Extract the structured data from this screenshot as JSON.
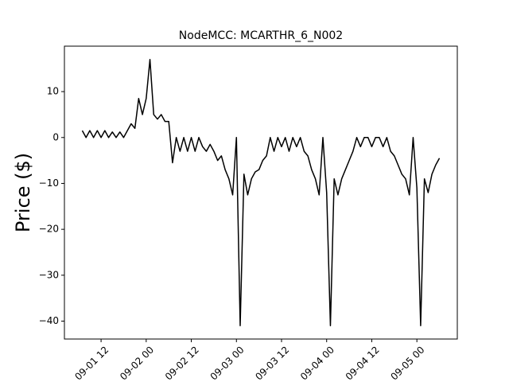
{
  "chart_data": {
    "type": "line",
    "title": "NodeMCC: MCARTHR_6_N002",
    "y_label": "Price ($)",
    "x": [
      7,
      8,
      9,
      10,
      11,
      12,
      13,
      14,
      15,
      16,
      17,
      18,
      19,
      20,
      21,
      22,
      23,
      24,
      25,
      26,
      27,
      28,
      29,
      30,
      31,
      32,
      33,
      34,
      35,
      36,
      37,
      38,
      39,
      40,
      41,
      42,
      43,
      44,
      45,
      46,
      47,
      48,
      49,
      50,
      51,
      52,
      53,
      54,
      55,
      56,
      57,
      58,
      59,
      60,
      61,
      62,
      63,
      64,
      65,
      66,
      67,
      68,
      69,
      70,
      71,
      72,
      73,
      74,
      75,
      76,
      77,
      78,
      79,
      80,
      81,
      82,
      83,
      84,
      85,
      86,
      87,
      88,
      89,
      90,
      91,
      92,
      93,
      94,
      95,
      96,
      97,
      98,
      99,
      100,
      101,
      102
    ],
    "series": [
      {
        "color": "#000000",
        "values": [
          1.5,
          0,
          1.5,
          0,
          1.5,
          0,
          1.5,
          0,
          1.2,
          0,
          1.2,
          0,
          1.5,
          3,
          2,
          8.5,
          5,
          8.5,
          17,
          5,
          4,
          5,
          3.5,
          3.5,
          -5.5,
          0,
          -3,
          0,
          -3,
          0,
          -3,
          0,
          -2,
          -3,
          -1.5,
          -3,
          -5,
          -4,
          -7,
          -9,
          -12.5,
          0,
          -41,
          -8,
          -12.5,
          -9,
          -7.5,
          -7,
          -5,
          -4,
          0,
          -3,
          0,
          -2,
          0,
          -3,
          0,
          -2,
          0,
          -3,
          -4,
          -7,
          -9,
          -12.5,
          0,
          -12,
          -41,
          -9,
          -12.5,
          -9,
          -7,
          -5,
          -3,
          0,
          -2,
          0,
          0,
          -2,
          0,
          0,
          -2,
          0,
          -3,
          -4,
          -6,
          -8,
          -9,
          -12.5,
          0,
          -11,
          -41,
          -9,
          -12,
          -8,
          -6,
          -4.5
        ]
      }
    ],
    "xlim": [
      2.25,
      106.75
    ],
    "xticks": [
      {
        "value": 12,
        "label": "09-01 12"
      },
      {
        "value": 24,
        "label": "09-02 00"
      },
      {
        "value": 36,
        "label": "09-02 12"
      },
      {
        "value": 48,
        "label": "09-03 00"
      },
      {
        "value": 60,
        "label": "09-03 12"
      },
      {
        "value": 72,
        "label": "09-04 00"
      },
      {
        "value": 84,
        "label": "09-04 12"
      },
      {
        "value": 96,
        "label": "09-05 00"
      }
    ],
    "ylim": [
      -43.9,
      19.9
    ],
    "yticks": [
      {
        "value": -40,
        "label": "−40"
      },
      {
        "value": -30,
        "label": "−30"
      },
      {
        "value": -20,
        "label": "−20"
      },
      {
        "value": -10,
        "label": "−10"
      },
      0,
      10
    ],
    "grid": false
  }
}
